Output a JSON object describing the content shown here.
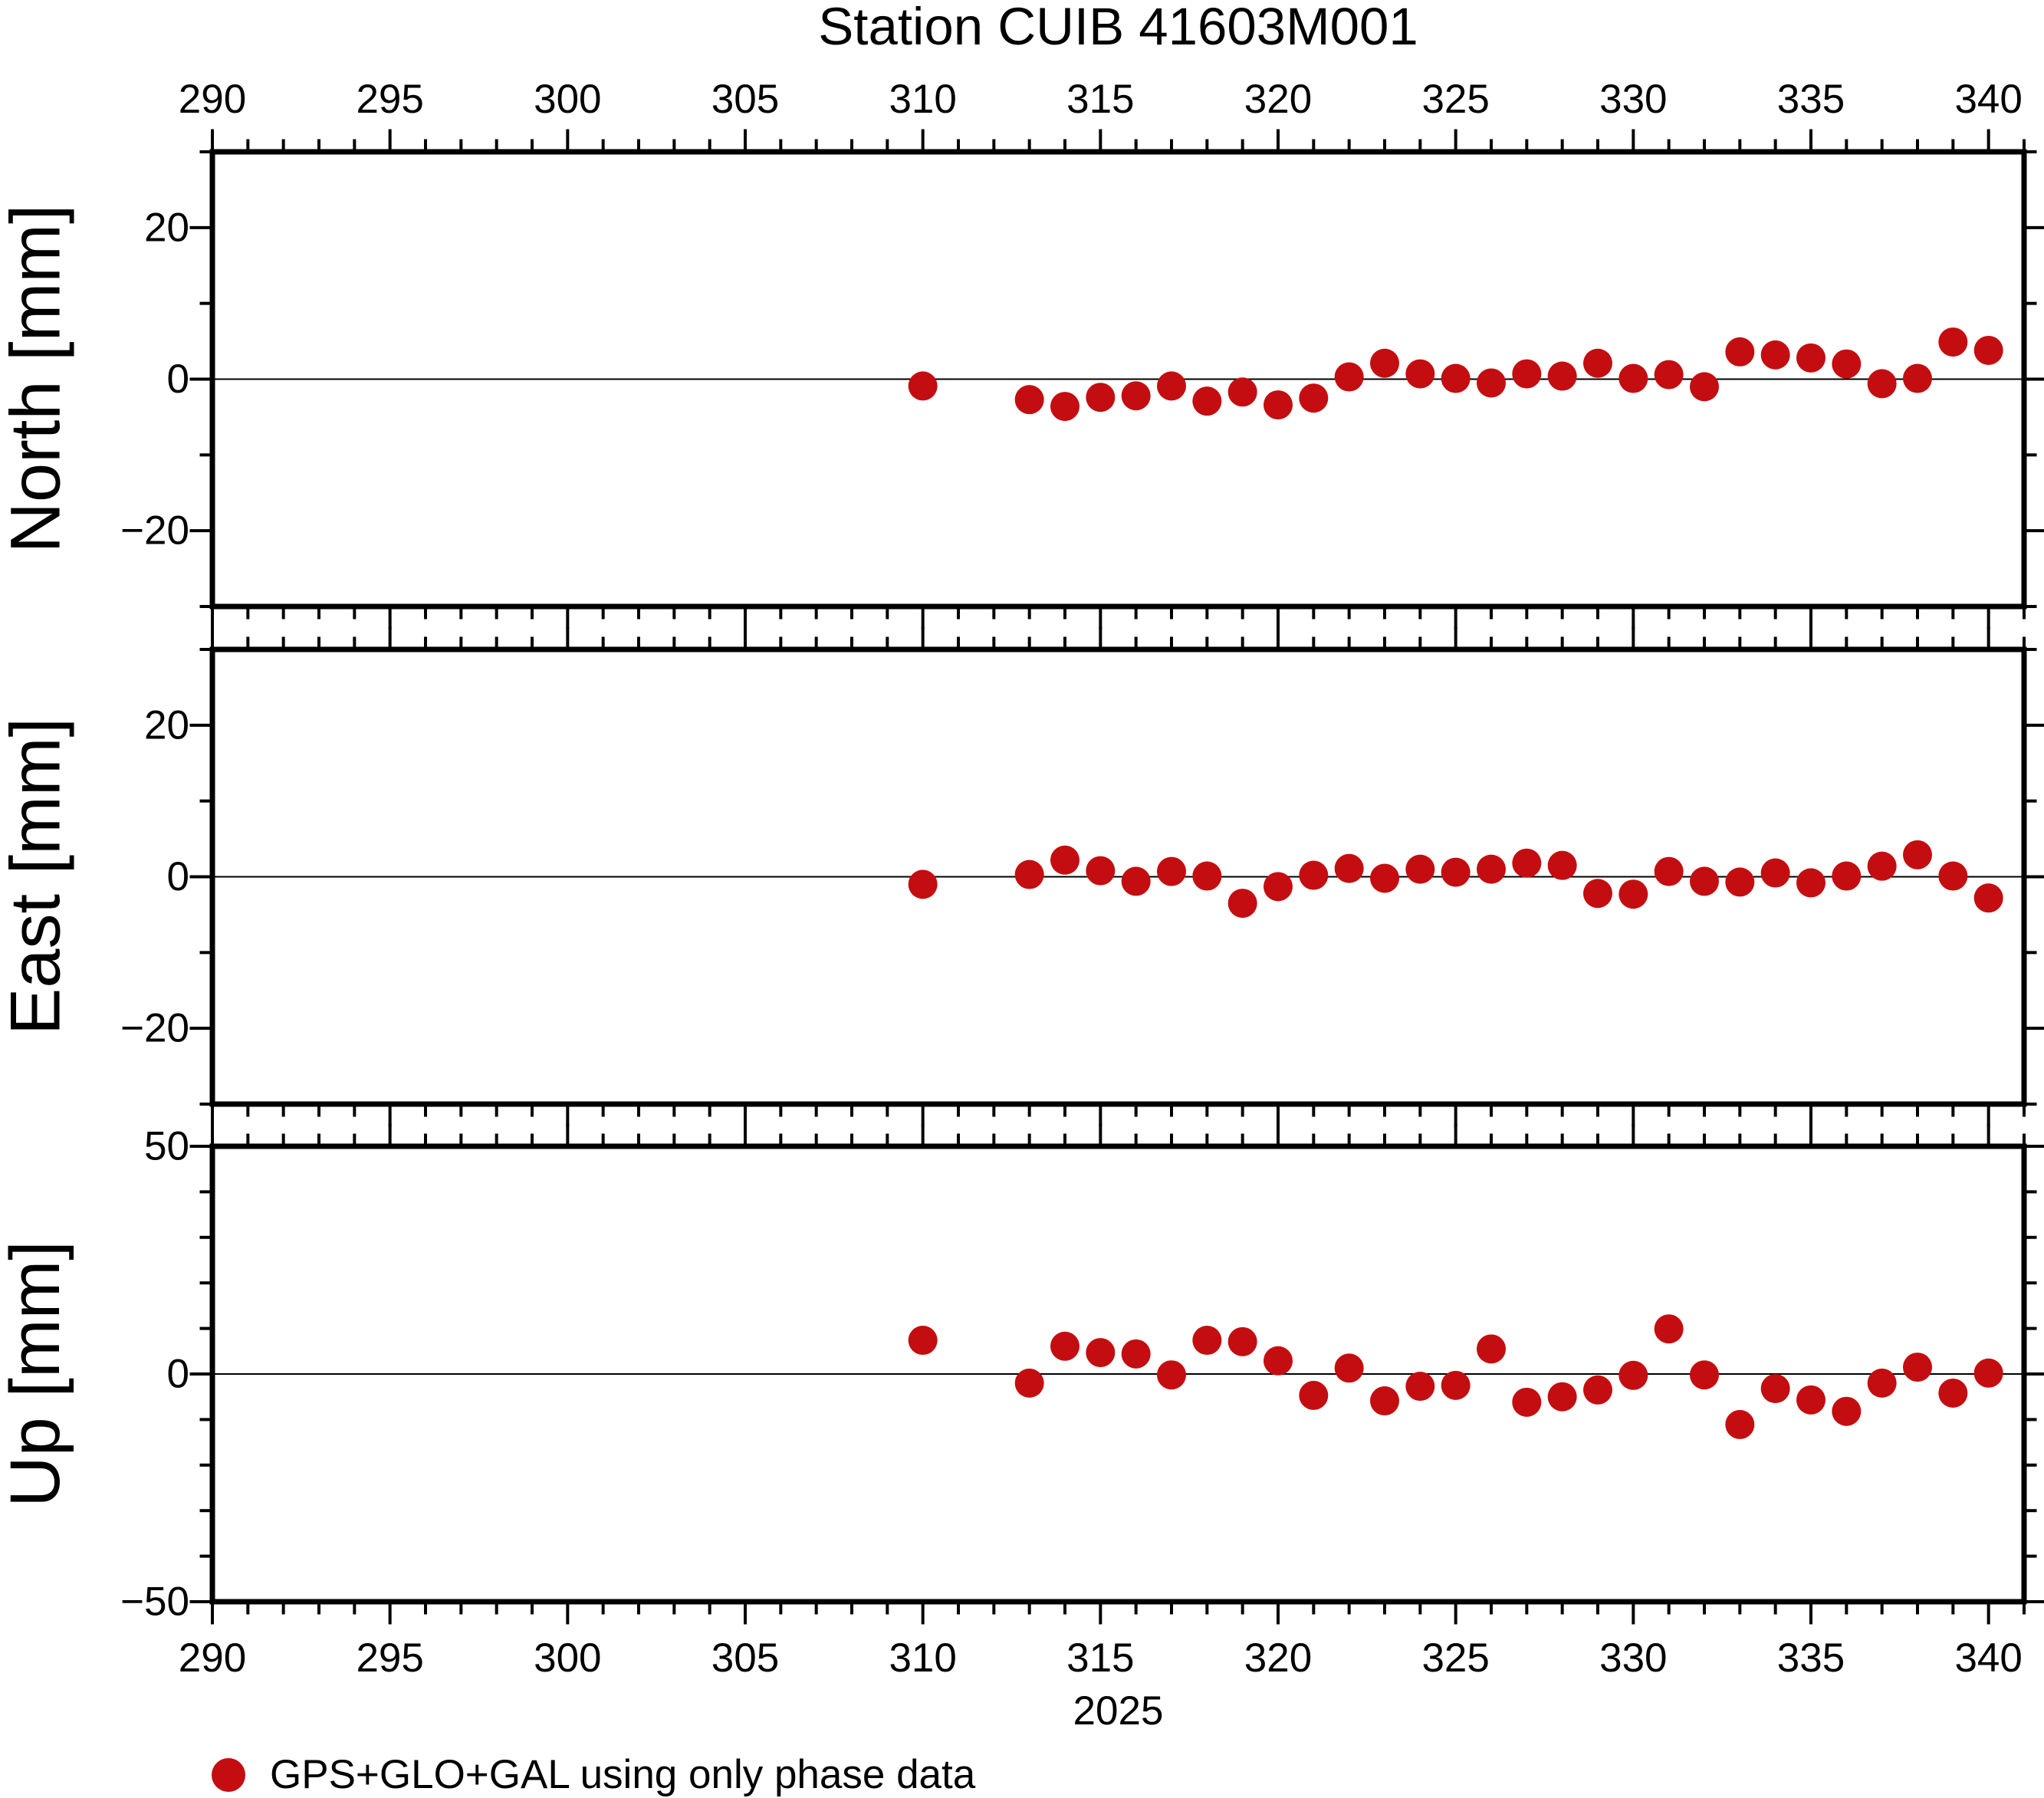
{
  "title": "Station CUIB 41603M001",
  "x_axis": {
    "tick_values": [
      290,
      295,
      300,
      305,
      310,
      315,
      320,
      325,
      330,
      335,
      340
    ],
    "tick_labels": [
      "290",
      "295",
      "300",
      "305",
      "310",
      "315",
      "320",
      "325",
      "330",
      "335",
      "340"
    ],
    "minor_step": 1,
    "range": [
      290,
      341
    ],
    "year_label": "2025"
  },
  "panels": [
    {
      "id": "north",
      "ylabel": "North [mm]",
      "y_range": [
        -30,
        30
      ],
      "y_tick_values": [
        -20,
        0,
        20
      ],
      "y_tick_labels": [
        "−20",
        "0",
        "20"
      ],
      "y_minor_step": 10
    },
    {
      "id": "east",
      "ylabel": "East [mm]",
      "y_range": [
        -30,
        30
      ],
      "y_tick_values": [
        -20,
        0,
        20
      ],
      "y_tick_labels": [
        "−20",
        "0",
        "20"
      ],
      "y_minor_step": 10
    },
    {
      "id": "up",
      "ylabel": "Up [mm]",
      "y_range": [
        -50,
        50
      ],
      "y_tick_values": [
        -50,
        0,
        50
      ],
      "y_tick_labels": [
        "−50",
        "0",
        "50"
      ],
      "y_minor_step": 10
    }
  ],
  "legend": {
    "label": "GPS+GLO+GAL using only phase data"
  },
  "colors": {
    "marker": "#c40d10",
    "axis": "#000000"
  },
  "chart_data": {
    "type": "scatter",
    "title": "Station CUIB 41603M001",
    "xlabel": "2025",
    "x_units": "day of year 2025",
    "grid": "zero-line-only",
    "legend_position": "bottom-left",
    "x_range": [
      290,
      341
    ],
    "x": [
      310,
      313,
      314,
      315,
      316,
      317,
      318,
      319,
      320,
      321,
      322,
      323,
      324,
      325,
      326,
      327,
      328,
      329,
      330,
      331,
      332,
      333,
      334,
      335,
      336,
      337,
      338,
      339,
      340
    ],
    "series": [
      {
        "name": "North [mm]",
        "y_range": [
          -30,
          30
        ],
        "values": [
          -0.9,
          -2.7,
          -3.6,
          -2.4,
          -2.2,
          -0.9,
          -2.9,
          -1.7,
          -3.4,
          -2.5,
          0.3,
          2.1,
          0.7,
          0.1,
          -0.5,
          0.7,
          0.4,
          2.1,
          0.1,
          0.6,
          -1.0,
          3.6,
          3.2,
          2.8,
          2.0,
          -0.6,
          0.1,
          4.9,
          3.8
        ]
      },
      {
        "name": "East [mm]",
        "y_range": [
          -30,
          30
        ],
        "values": [
          -1.0,
          0.3,
          2.2,
          0.8,
          -0.6,
          0.7,
          0.1,
          -3.5,
          -1.3,
          0.2,
          1.1,
          -0.2,
          1.0,
          0.6,
          1.0,
          1.8,
          1.5,
          -2.2,
          -2.3,
          0.7,
          -0.6,
          -0.7,
          0.5,
          -0.8,
          0.1,
          1.4,
          2.9,
          0.1,
          -2.8
        ]
      },
      {
        "name": "Up [mm]",
        "y_range": [
          -50,
          50
        ],
        "values": [
          7.4,
          -2.0,
          6.1,
          4.7,
          4.4,
          -0.2,
          7.4,
          7.1,
          2.9,
          -4.7,
          1.3,
          -5.9,
          -2.7,
          -2.5,
          5.5,
          -6.2,
          -5.0,
          -3.5,
          -0.3,
          9.9,
          -0.2,
          -11.1,
          -3.2,
          -5.7,
          -8.2,
          -2.0,
          1.5,
          -4.2,
          0.2
        ]
      }
    ]
  }
}
